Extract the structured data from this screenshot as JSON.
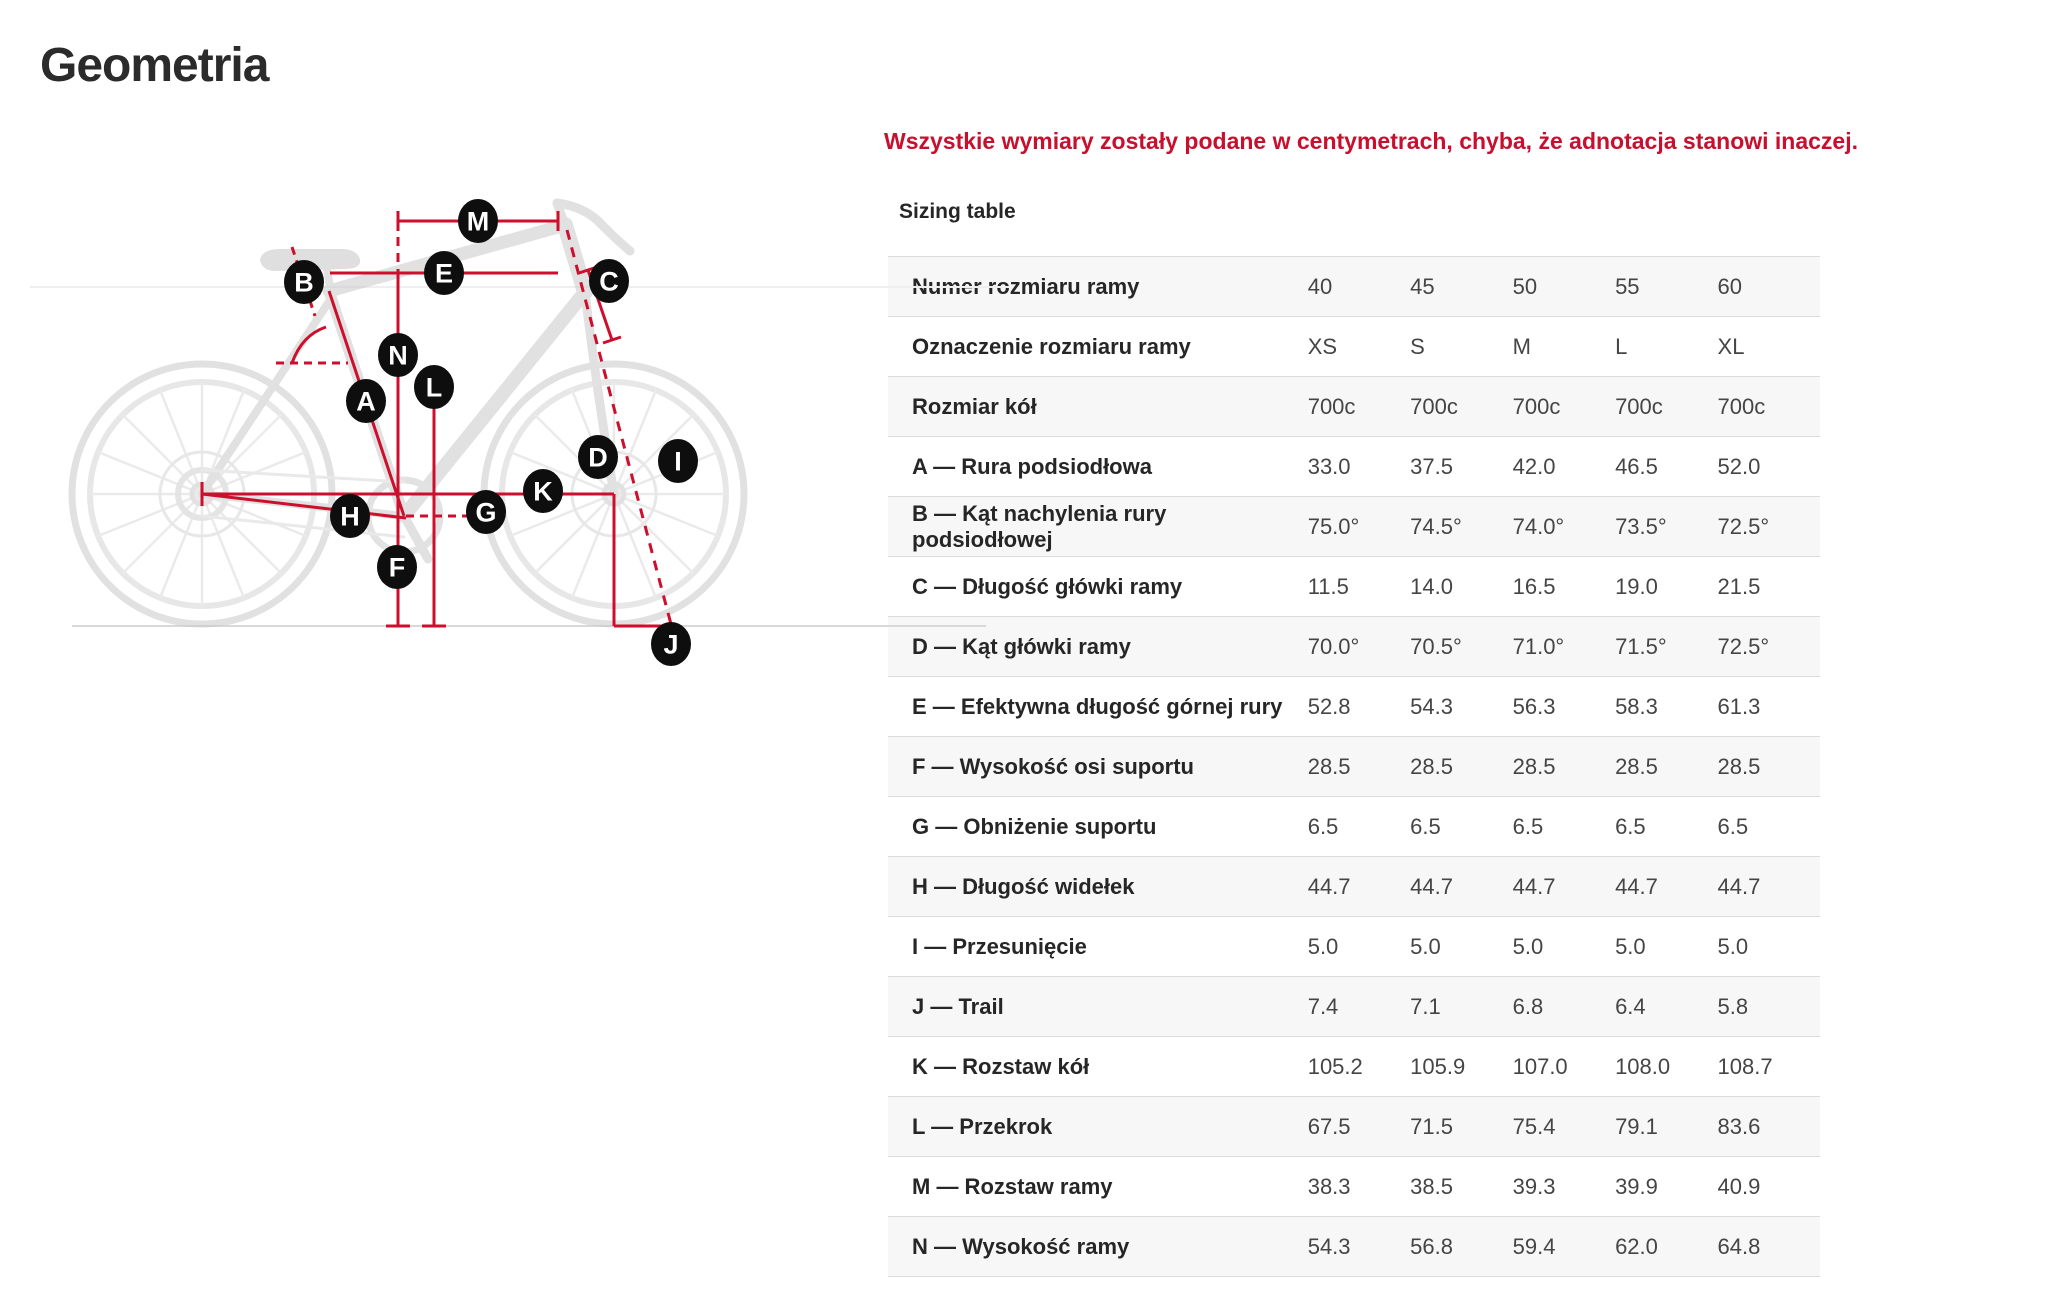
{
  "page": {
    "title": "Geometria"
  },
  "note": "Wszystkie wymiary zostały podane w centymetrach, chyba, że adnotacja stanowi inaczej.",
  "table": {
    "heading": "Sizing table",
    "rows": [
      {
        "label": "Numer rozmiaru ramy",
        "values": [
          "40",
          "45",
          "50",
          "55",
          "60"
        ]
      },
      {
        "label": "Oznaczenie rozmiaru ramy",
        "values": [
          "XS",
          "S",
          "M",
          "L",
          "XL"
        ]
      },
      {
        "label": "Rozmiar kół",
        "values": [
          "700c",
          "700c",
          "700c",
          "700c",
          "700c"
        ]
      },
      {
        "label": "A — Rura podsiodłowa",
        "values": [
          "33.0",
          "37.5",
          "42.0",
          "46.5",
          "52.0"
        ]
      },
      {
        "label": "B — Kąt nachylenia rury podsiodłowej",
        "values": [
          "75.0°",
          "74.5°",
          "74.0°",
          "73.5°",
          "72.5°"
        ]
      },
      {
        "label": "C — Długość główki ramy",
        "values": [
          "11.5",
          "14.0",
          "16.5",
          "19.0",
          "21.5"
        ]
      },
      {
        "label": "D — Kąt główki ramy",
        "values": [
          "70.0°",
          "70.5°",
          "71.0°",
          "71.5°",
          "72.5°"
        ]
      },
      {
        "label": "E — Efektywna długość górnej rury",
        "values": [
          "52.8",
          "54.3",
          "56.3",
          "58.3",
          "61.3"
        ]
      },
      {
        "label": "F — Wysokość osi suportu",
        "values": [
          "28.5",
          "28.5",
          "28.5",
          "28.5",
          "28.5"
        ]
      },
      {
        "label": "G — Obniżenie suportu",
        "values": [
          "6.5",
          "6.5",
          "6.5",
          "6.5",
          "6.5"
        ]
      },
      {
        "label": "H — Długość widełek",
        "values": [
          "44.7",
          "44.7",
          "44.7",
          "44.7",
          "44.7"
        ]
      },
      {
        "label": "I — Przesunięcie",
        "values": [
          "5.0",
          "5.0",
          "5.0",
          "5.0",
          "5.0"
        ]
      },
      {
        "label": "J — Trail",
        "values": [
          "7.4",
          "7.1",
          "6.8",
          "6.4",
          "5.8"
        ]
      },
      {
        "label": "K — Rozstaw kół",
        "values": [
          "105.2",
          "105.9",
          "107.0",
          "108.0",
          "108.7"
        ]
      },
      {
        "label": "L — Przekrok",
        "values": [
          "67.5",
          "71.5",
          "75.4",
          "79.1",
          "83.6"
        ]
      },
      {
        "label": "M — Rozstaw ramy",
        "values": [
          "38.3",
          "38.5",
          "39.3",
          "39.9",
          "40.9"
        ]
      },
      {
        "label": "N — Wysokość ramy",
        "values": [
          "54.3",
          "56.8",
          "59.4",
          "62.0",
          "64.8"
        ]
      }
    ]
  },
  "diagram": {
    "markers": [
      "M",
      "E",
      "B",
      "C",
      "N",
      "A",
      "L",
      "D",
      "I",
      "K",
      "H",
      "G",
      "F",
      "J"
    ]
  },
  "colors": {
    "accent_red": "#C8102E",
    "line_red": "#CE0E2D",
    "marker_black": "#0e0e0e",
    "text_dark": "#262626",
    "bike_gray": "#c9c9c9"
  }
}
